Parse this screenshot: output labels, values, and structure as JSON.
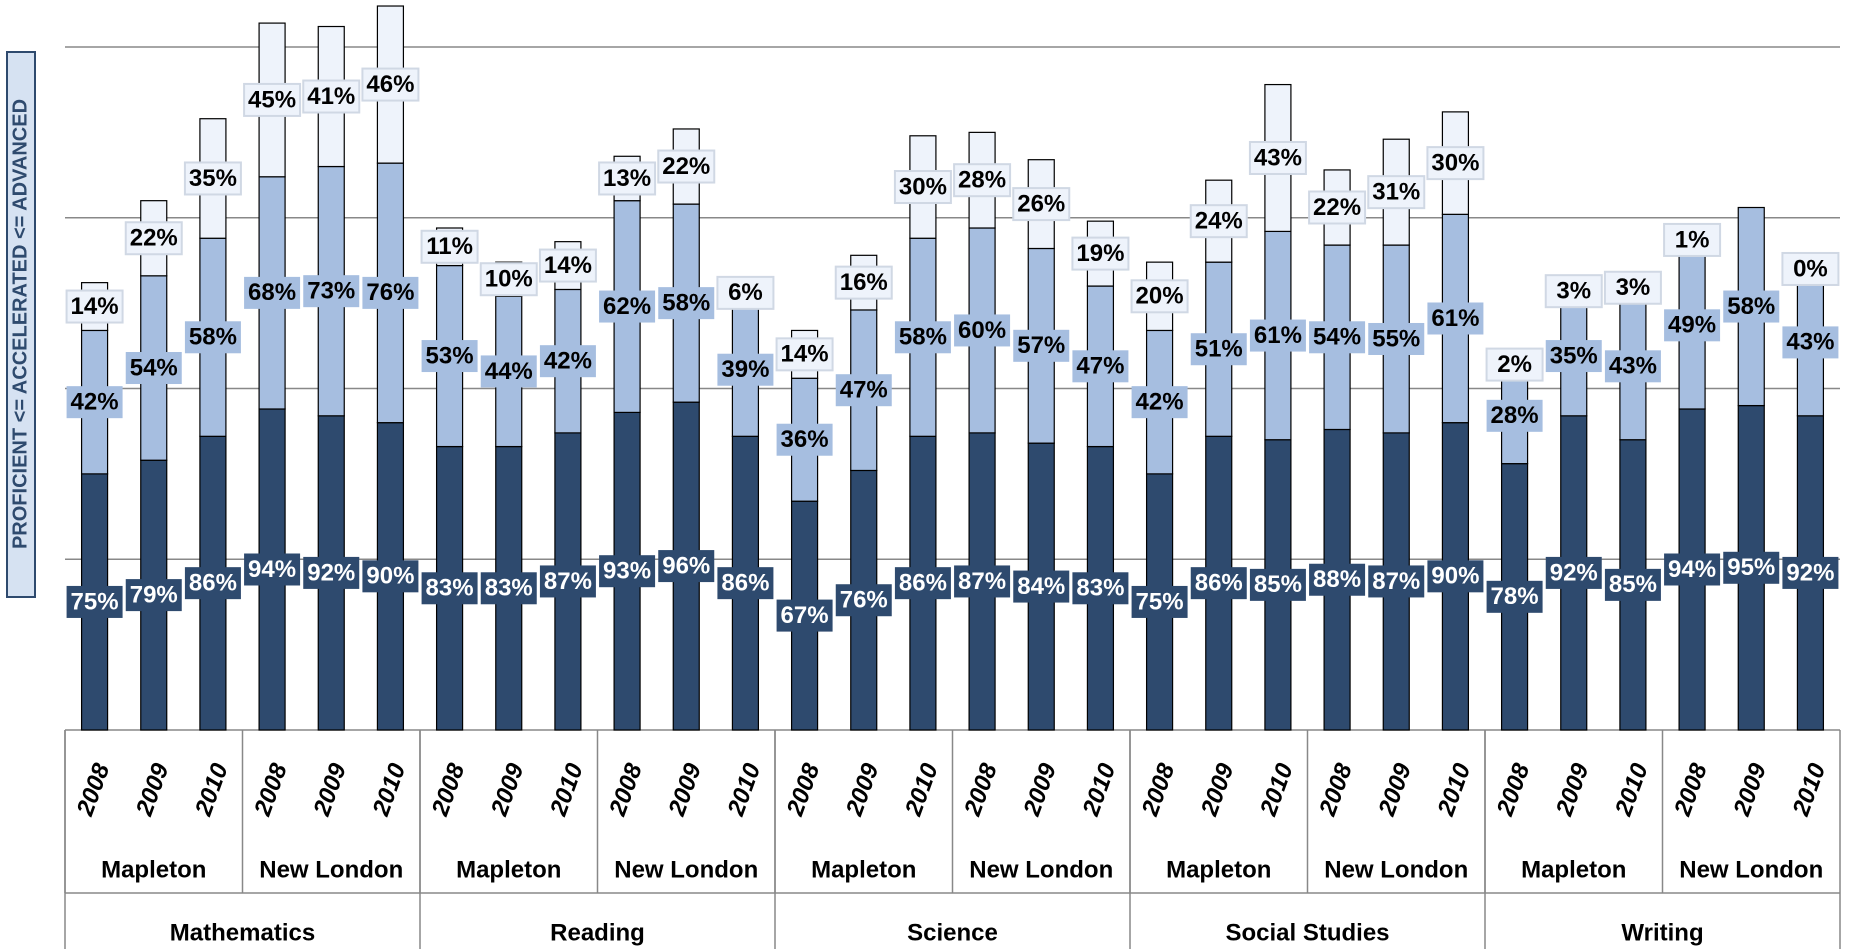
{
  "chart_data": {
    "type": "stacked-bar",
    "y_label": "PROFICIENT <= ACCELERATED <= ADVANCED",
    "subjects": [
      "Mathematics",
      "Reading",
      "Science",
      "Social Studies",
      "Writing"
    ],
    "towns": [
      "Mapleton",
      "New London",
      "Mapleton",
      "New London",
      "Mapleton",
      "New London",
      "Mapleton",
      "New London",
      "Mapleton",
      "New London"
    ],
    "categories": [
      "2008",
      "2009",
      "2010",
      "2008",
      "2009",
      "2010",
      "2008",
      "2009",
      "2010",
      "2008",
      "2009",
      "2010",
      "2008",
      "2009",
      "2010",
      "2008",
      "2009",
      "2010",
      "2008",
      "2009",
      "2010",
      "2008",
      "2009",
      "2010",
      "2008",
      "2009",
      "2010",
      "2008",
      "2009",
      "2010"
    ],
    "ylim": [
      0,
      200
    ],
    "yticks": [
      0,
      50,
      100,
      150,
      200
    ],
    "grid": true,
    "series": [
      {
        "name": "Proficient",
        "color": "#2e4a6e",
        "text_color": "#ffffff",
        "values": [
          75,
          79,
          86,
          94,
          92,
          90,
          83,
          83,
          87,
          93,
          96,
          86,
          67,
          76,
          86,
          87,
          84,
          83,
          75,
          86,
          85,
          88,
          87,
          90,
          78,
          92,
          85,
          94,
          95,
          92
        ],
        "value_labels": [
          "75%",
          "79%",
          "86%",
          "94%",
          "92%",
          "90%",
          "83%",
          "83%",
          "87%",
          "93%",
          "96%",
          "86%",
          "67%",
          "76%",
          "86%",
          "87%",
          "84%",
          "83%",
          "75%",
          "86%",
          "85%",
          "88%",
          "87%",
          "90%",
          "78%",
          "92%",
          "85%",
          "94%",
          "95%",
          "92%"
        ]
      },
      {
        "name": "Accelerated",
        "color": "#a6bee0",
        "text_color": "#000000",
        "values": [
          42,
          54,
          58,
          68,
          73,
          76,
          53,
          44,
          42,
          62,
          58,
          39,
          36,
          47,
          58,
          60,
          57,
          47,
          42,
          51,
          61,
          54,
          55,
          61,
          28,
          35,
          43,
          49,
          58,
          43
        ],
        "value_labels": [
          "42%",
          "54%",
          "58%",
          "68%",
          "73%",
          "76%",
          "53%",
          "44%",
          "42%",
          "62%",
          "58%",
          "39%",
          "36%",
          "47%",
          "58%",
          "60%",
          "57%",
          "47%",
          "42%",
          "51%",
          "61%",
          "54%",
          "55%",
          "61%",
          "28%",
          "35%",
          "43%",
          "49%",
          "58%",
          "43%"
        ]
      },
      {
        "name": "Advanced",
        "color": "#eef3fb",
        "text_color": "#000000",
        "values": [
          14,
          22,
          35,
          45,
          41,
          46,
          11,
          10,
          14,
          13,
          22,
          6,
          14,
          16,
          30,
          28,
          26,
          19,
          20,
          24,
          43,
          22,
          31,
          30,
          2,
          3,
          3,
          1,
          null,
          0
        ],
        "value_labels": [
          "14%",
          "22%",
          "35%",
          "45%",
          "41%",
          "46%",
          "11%",
          "10%",
          "14%",
          "13%",
          "22%",
          "6%",
          "14%",
          "16%",
          "30%",
          "28%",
          "26%",
          "19%",
          "20%",
          "24%",
          "43%",
          "22%",
          "31%",
          "30%",
          "2%",
          "3%",
          "3%",
          "1%",
          null,
          "0%"
        ]
      }
    ]
  }
}
